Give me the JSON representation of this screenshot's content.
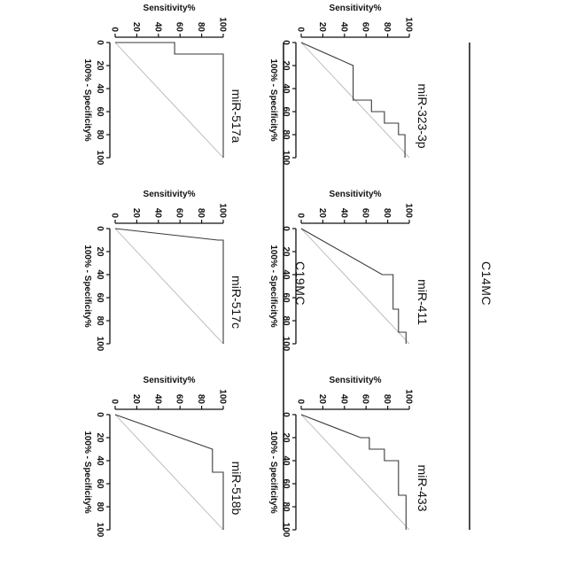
{
  "groups": [
    {
      "label": "C14MC"
    },
    {
      "label": "C19MC"
    }
  ],
  "chart_data": [
    {
      "type": "line",
      "title": "miR-323-3p",
      "xlabel": "100% - Specificity%",
      "ylabel": "Sensitivity%",
      "xlim": [
        0,
        100
      ],
      "ylim": [
        0,
        100
      ],
      "x_ticks": [
        "0",
        "20",
        "40",
        "60",
        "80",
        "100"
      ],
      "y_ticks": [
        "0",
        "20",
        "40",
        "60",
        "80",
        "100"
      ],
      "group": "C14MC",
      "series": [
        {
          "x": [
            0,
            20,
            20,
            50,
            50,
            60,
            60,
            70,
            70,
            80,
            80,
            100
          ],
          "y": [
            0,
            48,
            48,
            48,
            65,
            65,
            77,
            77,
            90,
            90,
            96,
            96
          ]
        }
      ],
      "reference_line": true
    },
    {
      "type": "line",
      "title": "miR-411",
      "xlabel": "100% - Specificity%",
      "ylabel": "Sensitivity%",
      "xlim": [
        0,
        100
      ],
      "ylim": [
        0,
        100
      ],
      "x_ticks": [
        "0",
        "20",
        "40",
        "60",
        "80",
        "100"
      ],
      "y_ticks": [
        "0",
        "20",
        "40",
        "60",
        "80",
        "100"
      ],
      "group": "C14MC",
      "series": [
        {
          "x": [
            0,
            40,
            40,
            70,
            70,
            90,
            90,
            100
          ],
          "y": [
            0,
            75,
            85,
            85,
            90,
            90,
            97,
            97
          ]
        }
      ],
      "reference_line": true
    },
    {
      "type": "line",
      "title": "miR-433",
      "xlabel": "100% - Specificity%",
      "ylabel": "Sensitivity%",
      "xlim": [
        0,
        100
      ],
      "ylim": [
        0,
        100
      ],
      "x_ticks": [
        "0",
        "20",
        "40",
        "60",
        "80",
        "100"
      ],
      "y_ticks": [
        "0",
        "20",
        "40",
        "60",
        "80",
        "100"
      ],
      "group": "C14MC",
      "series": [
        {
          "x": [
            0,
            20,
            20,
            30,
            30,
            40,
            40,
            70,
            70,
            100
          ],
          "y": [
            0,
            55,
            63,
            63,
            77,
            77,
            90,
            90,
            97,
            97
          ]
        }
      ],
      "reference_line": true
    },
    {
      "type": "line",
      "title": "miR-517a",
      "xlabel": "100% - Specificity%",
      "ylabel": "Sensitivity%",
      "xlim": [
        0,
        100
      ],
      "ylim": [
        0,
        100
      ],
      "x_ticks": [
        "0",
        "20",
        "40",
        "60",
        "80",
        "100"
      ],
      "y_ticks": [
        "0",
        "20",
        "40",
        "60",
        "80",
        "100"
      ],
      "group": "C19MC",
      "series": [
        {
          "x": [
            0,
            0,
            10,
            10,
            100
          ],
          "y": [
            0,
            55,
            55,
            100,
            100
          ]
        }
      ],
      "reference_line": true
    },
    {
      "type": "line",
      "title": "miR-517c",
      "xlabel": "100% - Specificity%",
      "ylabel": "Sensitivity%",
      "xlim": [
        0,
        100
      ],
      "ylim": [
        0,
        100
      ],
      "x_ticks": [
        "0",
        "20",
        "40",
        "60",
        "80",
        "100"
      ],
      "y_ticks": [
        "0",
        "20",
        "40",
        "60",
        "80",
        "100"
      ],
      "group": "C19MC",
      "series": [
        {
          "x": [
            0,
            10,
            10,
            100
          ],
          "y": [
            0,
            95,
            100,
            100
          ]
        }
      ],
      "reference_line": true
    },
    {
      "type": "line",
      "title": "miR-518b",
      "xlabel": "100% - Specificity%",
      "ylabel": "Sensitivity%",
      "xlim": [
        0,
        100
      ],
      "ylim": [
        0,
        100
      ],
      "x_ticks": [
        "0",
        "20",
        "40",
        "60",
        "80",
        "100"
      ],
      "y_ticks": [
        "0",
        "20",
        "40",
        "60",
        "80",
        "100"
      ],
      "group": "C19MC",
      "series": [
        {
          "x": [
            0,
            30,
            30,
            50,
            50,
            100
          ],
          "y": [
            0,
            90,
            90,
            90,
            100,
            100
          ]
        }
      ],
      "reference_line": true
    }
  ]
}
